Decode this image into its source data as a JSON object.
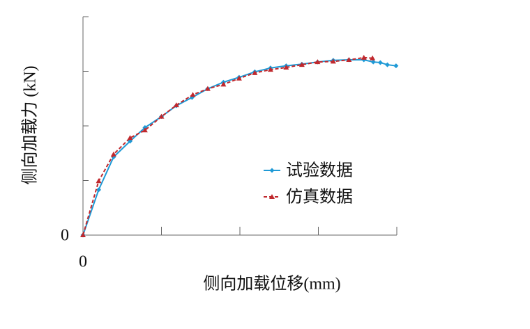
{
  "chart_data": {
    "type": "line",
    "ylabel": "侧向加载力 (kN)",
    "xlabel": "侧向加载位移(mm)",
    "xlim": [
      0,
      4
    ],
    "ylim": [
      0,
      4
    ],
    "xticks": [
      0,
      {
        "value": 1,
        "label": null
      },
      {
        "value": 2,
        "label": null
      },
      {
        "value": 3,
        "label": null
      },
      {
        "value": 4,
        "label": null
      }
    ],
    "yticks": [
      0,
      {
        "value": 1,
        "label": null
      },
      {
        "value": 2,
        "label": null
      },
      {
        "value": 3,
        "label": null
      },
      {
        "value": 4,
        "label": null
      }
    ],
    "legend": "right",
    "series": [
      {
        "name": "试验数据",
        "color": "#1f9ad6",
        "marker": "diamond",
        "dash": "solid",
        "x": [
          0,
          0.2,
          0.39,
          0.6,
          0.79,
          1.0,
          1.19,
          1.39,
          1.59,
          1.79,
          1.99,
          2.19,
          2.39,
          2.59,
          2.79,
          2.99,
          3.19,
          3.39,
          3.58,
          3.7,
          3.79,
          3.88,
          3.99
        ],
        "values": [
          0,
          0.83,
          1.43,
          1.72,
          1.97,
          2.17,
          2.37,
          2.52,
          2.68,
          2.8,
          2.89,
          2.99,
          3.06,
          3.1,
          3.13,
          3.17,
          3.2,
          3.21,
          3.21,
          3.17,
          3.16,
          3.12,
          3.1
        ]
      },
      {
        "name": "仿真数据",
        "color": "#c0282d",
        "marker": "triangle",
        "dash": "dashed",
        "x": [
          0,
          0.2,
          0.39,
          0.6,
          0.79,
          1.0,
          1.19,
          1.4,
          1.59,
          1.79,
          1.99,
          2.19,
          2.39,
          2.59,
          2.79,
          2.99,
          3.19,
          3.39,
          3.58,
          3.69
        ],
        "values": [
          0,
          0.99,
          1.48,
          1.78,
          1.92,
          2.17,
          2.38,
          2.57,
          2.68,
          2.76,
          2.87,
          2.97,
          3.03,
          3.07,
          3.12,
          3.17,
          3.18,
          3.21,
          3.25,
          3.24
        ]
      }
    ]
  }
}
